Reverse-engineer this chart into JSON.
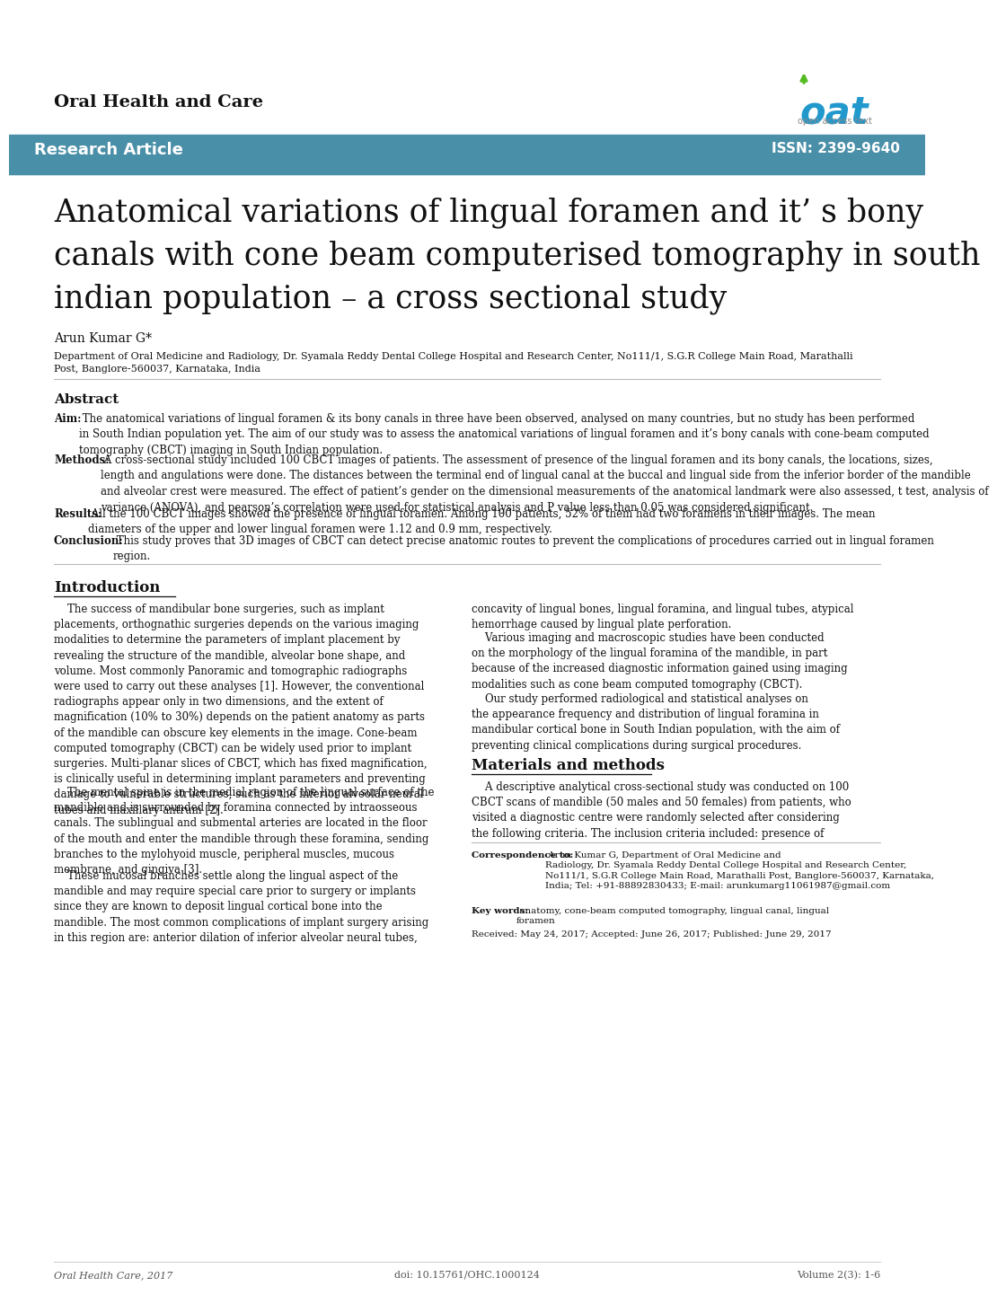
{
  "journal_name": "Oral Health and Care",
  "banner_color": "#4a8fa8",
  "banner_text": "Research Article",
  "banner_issn": "ISSN: 2399-9640",
  "article_title_line1": "Anatomical variations of lingual foramen and it’ s bony",
  "article_title_line2": "canals with cone beam computerised tomography in south",
  "article_title_line3": "indian population – a cross sectional study",
  "author": "Arun Kumar G*",
  "affiliation_line1": "Department of Oral Medicine and Radiology, Dr. Syamala Reddy Dental College Hospital and Research Center, No111/1, S.G.R College Main Road, Marathalli",
  "affiliation_line2": "Post, Banglore-560037, Karnataka, India",
  "abstract_title": "Abstract",
  "aim_bold": "Aim:",
  "aim_text": " The anatomical variations of lingual foramen & its bony canals in three have been observed, analysed on many countries, but no study has been performed\nin South Indian population yet. The aim of our study was to assess the anatomical variations of lingual foramen and it’s bony canals with cone-beam computed\ntomography (CBCT) imaging in South Indian population.",
  "methods_bold": "Methods:",
  "methods_text": " A cross-sectional study included 100 CBCT images of patients. The assessment of presence of the lingual foramen and its bony canals, the locations, sizes,\nlength and angulations were done. The distances between the terminal end of lingual canal at the buccal and lingual side from the inferior border of the mandible\nand alveolar crest were measured. The effect of patient’s gender on the dimensional measurements of the anatomical landmark were also assessed, t test, analysis of\nvariance (ANOVA), and pearson’s correlation were used for statistical analysis and P value less than 0.05 was considered significant.",
  "results_bold": "Results:",
  "results_text": " All the 100 CBCT images showed the presence of lingual foramen. Among 100 patients, 52% of them had two foramens in their images. The mean\ndiameters of the upper and lower lingual foramen were 1.12 and 0.9 mm, respectively.",
  "conclusion_bold": "Conclusion:",
  "conclusion_text": " This study proves that 3D images of CBCT can detect precise anatomic routes to prevent the complications of procedures carried out in lingual foramen\nregion.",
  "intro_title": "Introduction",
  "intro_col1_para1": "    The success of mandibular bone surgeries, such as implant\nplacements, orthognathic surgeries depends on the various imaging\nmodalities to determine the parameters of implant placement by\nrevealing the structure of the mandible, alveolar bone shape, and\nvolume. Most commonly Panoramic and tomographic radiographs\nwere used to carry out these analyses [1]. However, the conventional\nradiographs appear only in two dimensions, and the extent of\nmagnification (10% to 30%) depends on the patient anatomy as parts\nof the mandible can obscure key elements in the image. Cone-beam\ncomputed tomography (CBCT) can be widely used prior to implant\nsurgeries. Multi-planar slices of CBCT, which has fixed magnification,\nis clinically useful in determining implant parameters and preventing\ndamage to vulnerable structures, such as the inferior alveolar neural\ntubes and maxillary antrum [2].",
  "intro_col1_para2": "    The mental spine is in the medial region of the lingual surface of the\nmandible and is surrounded by foramina connected by intraosseous\ncanals. The sublingual and submental arteries are located in the floor\nof the mouth and enter the mandible through these foramina, sending\nbranches to the mylohyoid muscle, peripheral muscles, mucous\nmembrane, and gingiva [3].",
  "intro_col1_para3": "    These mucosal branches settle along the lingual aspect of the\nmandible and may require special care prior to surgery or implants\nsince they are known to deposit lingual cortical bone into the\nmandible. The most common complications of implant surgery arising\nin this region are: anterior dilation of inferior alveolar neural tubes,",
  "intro_col2_para1": "concavity of lingual bones, lingual foramina, and lingual tubes, atypical\nhemorrhage caused by lingual plate perforation.",
  "intro_col2_para2": "    Various imaging and macroscopic studies have been conducted\non the morphology of the lingual foramina of the mandible, in part\nbecause of the increased diagnostic information gained using imaging\nmodalities such as cone beam computed tomography (CBCT).",
  "intro_col2_para3": "    Our study performed radiological and statistical analyses on\nthe appearance frequency and distribution of lingual foramina in\nmandibular cortical bone in South Indian population, with the aim of\npreventing clinical complications during surgical procedures.",
  "mat_methods_title": "Materials and methods",
  "mat_methods_text": "    A descriptive analytical cross-sectional study was conducted on 100\nCBCT scans of mandible (50 males and 50 females) from patients, who\nvisited a diagnostic centre were randomly selected after considering\nthe following criteria. The inclusion criteria included: presence of",
  "correspondence_bold": "Correspondence to:",
  "correspondence_text": " Arun Kumar G, Department of Oral Medicine and\nRadiology, Dr. Syamala Reddy Dental College Hospital and Research Center,\nNo111/1, S.G.R College Main Road, Marathalli Post, Banglore-560037, Karnataka,\nIndia; Tel: +91-88892830433; E-mail: arunkumarg11061987@gmail.com",
  "keywords_bold": "Key words:",
  "keywords_text": " anatomy, cone-beam computed tomography, lingual canal, lingual\nforamen",
  "received_bold_parts": [
    "Received:",
    "Accepted:",
    "Published:"
  ],
  "received_text": "Received: May 24, 2017; Accepted: June 26, 2017; Published: June 29, 2017",
  "footer_left": "Oral Health Care, 2017",
  "footer_doi": "doi: 10.15761/OHC.1000124",
  "footer_right": "Volume 2(3): 1-6",
  "bg_color": "#ffffff",
  "text_color": "#000000",
  "body_font_size": 8.5,
  "title_font_size": 25
}
